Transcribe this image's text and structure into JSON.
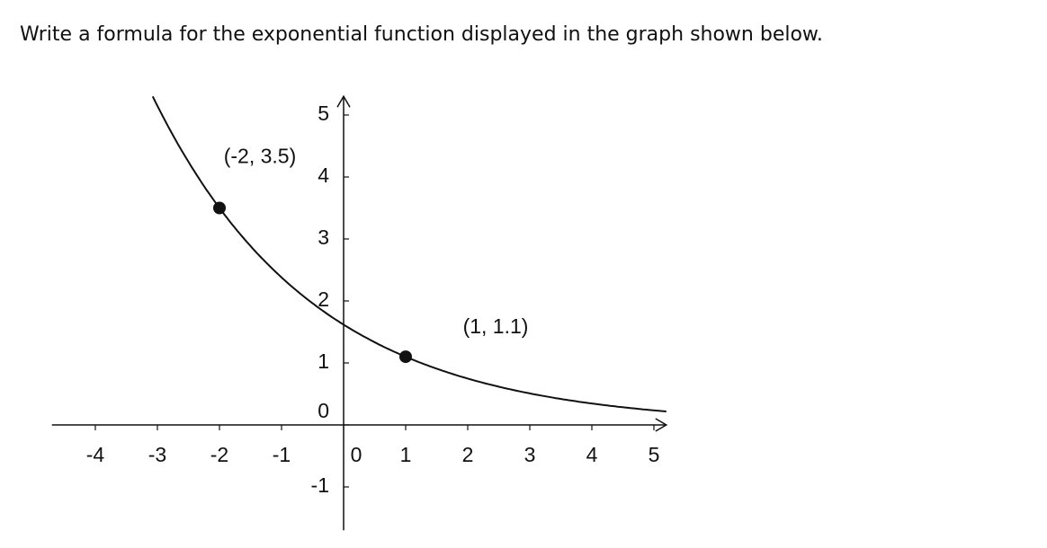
{
  "question": "Write a formula for the exponential function displayed in the graph shown below.",
  "chart_data": {
    "type": "exponential",
    "points": [
      {
        "x": -2,
        "y": 3.5,
        "label": "(-2, 3.5)"
      },
      {
        "x": 1,
        "y": 1.1,
        "label": "(1, 1.1)"
      }
    ],
    "xlim": [
      -4.7,
      5.2
    ],
    "ylim": [
      -1.7,
      5.3
    ],
    "xticks": [
      -4,
      -3,
      -2,
      -1,
      0,
      1,
      2,
      3,
      4,
      5
    ],
    "yticks": [
      -1,
      0,
      1,
      2,
      3,
      4,
      5
    ],
    "color": "#111111"
  }
}
